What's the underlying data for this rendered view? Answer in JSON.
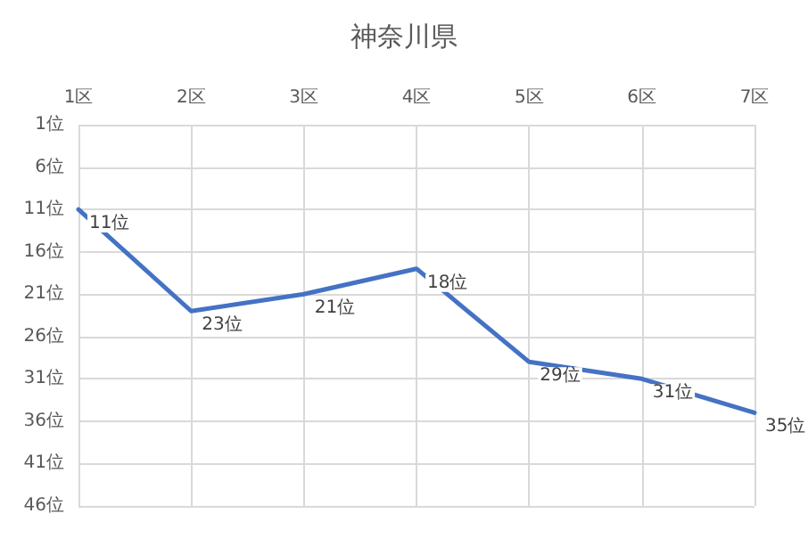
{
  "chart_data": {
    "type": "line",
    "title": "神奈川県",
    "categories": [
      "1区",
      "2区",
      "3区",
      "4区",
      "5区",
      "6区",
      "7区"
    ],
    "series": [
      {
        "color": "#4472c4",
        "values": [
          11,
          23,
          21,
          18,
          29,
          31,
          35
        ],
        "value_labels": [
          "11位",
          "23位",
          "21位",
          "18位",
          "29位",
          "31位",
          "35位"
        ]
      }
    ],
    "ylim": [
      46,
      1
    ],
    "yticks": [
      {
        "value": 1,
        "label": "1位"
      },
      {
        "value": 6,
        "label": "6位"
      },
      {
        "value": 11,
        "label": "11位"
      },
      {
        "value": 16,
        "label": "16位"
      },
      {
        "value": 21,
        "label": "21位"
      },
      {
        "value": 26,
        "label": "26位"
      },
      {
        "value": 31,
        "label": "31位"
      },
      {
        "value": 36,
        "label": "36位"
      },
      {
        "value": 41,
        "label": "41位"
      },
      {
        "value": 46,
        "label": "46位"
      }
    ],
    "grid": true,
    "marker": "none",
    "line_style": "solid"
  }
}
